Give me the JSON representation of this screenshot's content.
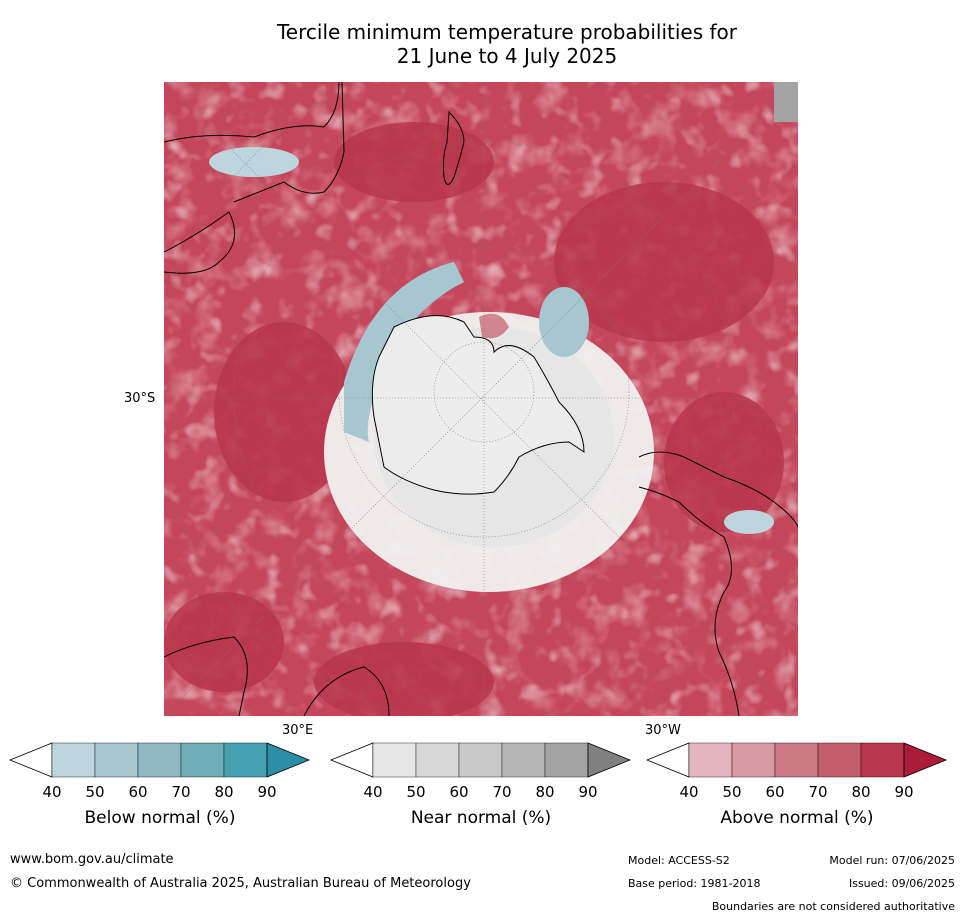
{
  "title_line1": "Tercile minimum temperature probabilities for",
  "title_line2": "21 June to 4 July 2025",
  "map": {
    "lat_label": "30°S",
    "lon_labels": [
      "30°E",
      "30°W"
    ]
  },
  "legends": [
    {
      "label": "Below normal (%)",
      "ticks": [
        "40",
        "50",
        "60",
        "70",
        "80",
        "90"
      ],
      "colors": [
        "#ffffff",
        "#bdd5dc",
        "#a6c7cf",
        "#8fb8c4",
        "#6daeba",
        "#45a1b1",
        "#2b8ea6"
      ]
    },
    {
      "label": "Near normal (%)",
      "ticks": [
        "40",
        "50",
        "60",
        "70",
        "80",
        "90"
      ],
      "colors": [
        "#ffffff",
        "#e6e6e6",
        "#d7d7d7",
        "#c8c8c8",
        "#b6b6b6",
        "#a3a3a3",
        "#808080"
      ]
    },
    {
      "label": "Above normal (%)",
      "ticks": [
        "40",
        "50",
        "60",
        "70",
        "80",
        "90"
      ],
      "colors": [
        "#ffffff",
        "#e2b6bc",
        "#d69aa2",
        "#cc7b86",
        "#c45d6b",
        "#b9364c",
        "#ab1b3c"
      ]
    }
  ],
  "footer": {
    "website": "www.bom.gov.au/climate",
    "copyright": "© Commonwealth of Australia 2025, Australian Bureau of Meteorology",
    "model": "Model: ACCESS-S2",
    "model_run": "Model run: 07/06/2025",
    "base_period": "Base period: 1981-2018",
    "issued": "Issued: 09/06/2025",
    "disclaimer": "Boundaries are not considered authoritative"
  }
}
